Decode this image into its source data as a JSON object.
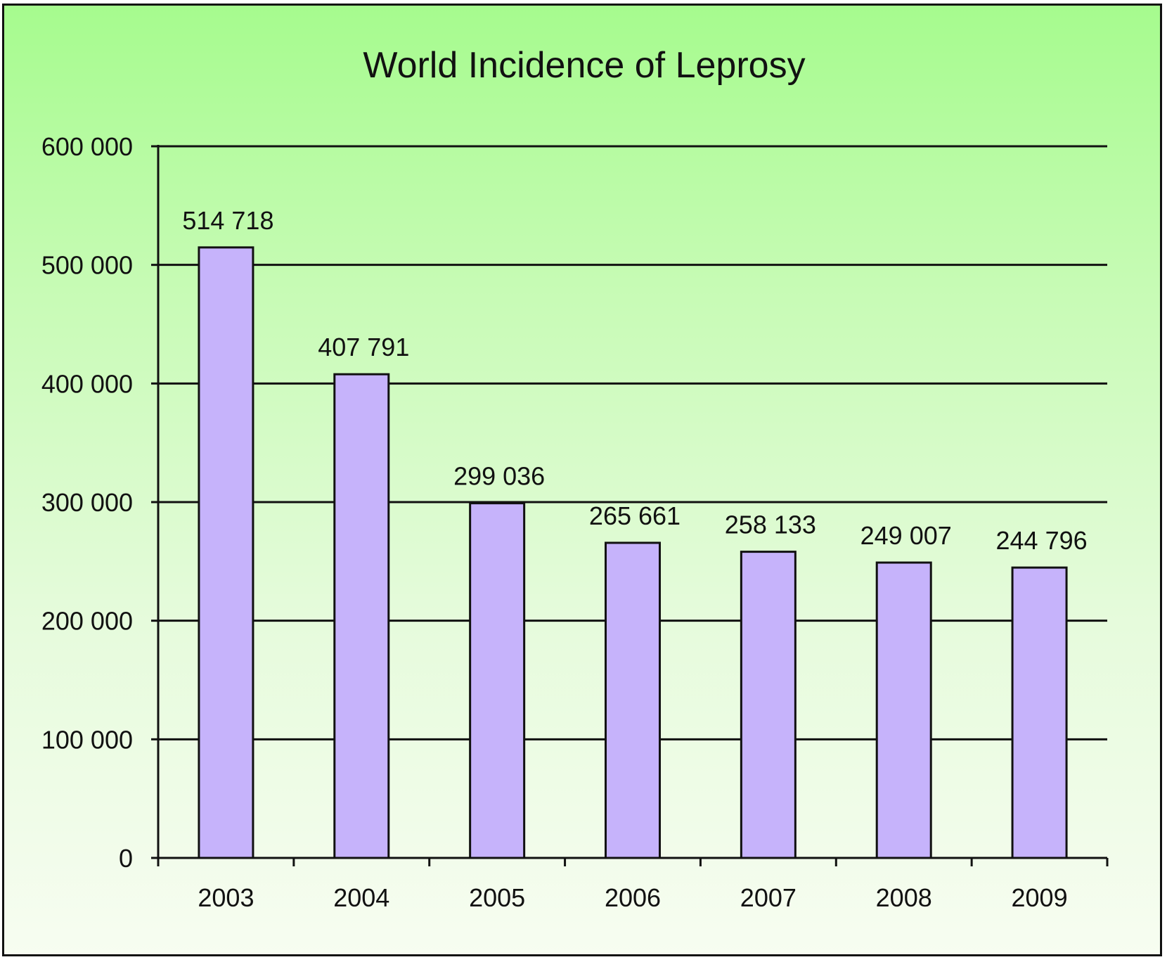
{
  "chart_data": {
    "type": "bar",
    "title": "World Incidence of Leprosy",
    "categories": [
      "2003",
      "2004",
      "2005",
      "2006",
      "2007",
      "2008",
      "2009"
    ],
    "values": [
      514718,
      407791,
      299036,
      265661,
      258133,
      249007,
      244796
    ],
    "value_labels": [
      "514 718",
      "407 791",
      "299 036",
      "265 661",
      "258 133",
      "249 007",
      "244 796"
    ],
    "y_ticks": [
      0,
      100000,
      200000,
      300000,
      400000,
      500000,
      600000
    ],
    "y_tick_labels": [
      "0",
      "100 000",
      "200 000",
      "300 000",
      "400 000",
      "500 000",
      "600 000"
    ],
    "ylim": [
      0,
      600000
    ],
    "xlabel": "",
    "ylabel": "",
    "grid": true,
    "legend": "none",
    "colors": {
      "bar_fill": "#c6b3fb",
      "bar_stroke": "#111111",
      "grid": "#111111",
      "background_top": "#a6fb8e",
      "background_bottom": "#f7fdf1"
    }
  }
}
